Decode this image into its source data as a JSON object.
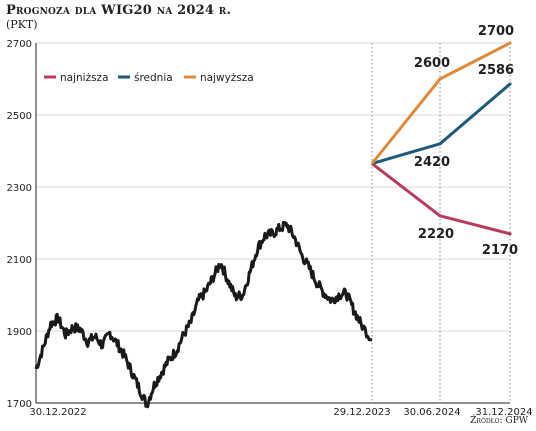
{
  "chart_data": {
    "type": "line",
    "title": "Prognoza dla WIG20 na 2024 r.",
    "subtitle": "(PKT)",
    "source": "Źródło: GPW",
    "ylim": [
      1700,
      2700
    ],
    "yticks": [
      1700,
      1900,
      2100,
      2300,
      2500,
      2700
    ],
    "x_tick_labels": [
      "30.12.2022",
      "29.12.2023",
      "30.06.2024",
      "31.12.2024"
    ],
    "grid": true,
    "legend_position": "top-left",
    "historical": {
      "color": "#1a1a1a",
      "x": [
        0,
        8,
        16,
        24,
        32,
        40,
        48,
        56,
        64,
        72,
        80,
        88,
        96,
        104,
        112,
        120,
        128,
        136,
        144,
        152,
        160,
        168,
        176,
        184,
        192,
        200,
        208,
        216,
        224,
        232,
        240,
        248,
        256,
        264,
        272,
        280,
        288,
        296,
        304,
        312,
        320,
        328,
        336,
        344,
        352,
        364
      ],
      "y": [
        1795,
        1855,
        1920,
        1935,
        1890,
        1910,
        1905,
        1870,
        1885,
        1860,
        1895,
        1865,
        1830,
        1785,
        1740,
        1695,
        1750,
        1785,
        1820,
        1845,
        1890,
        1925,
        1985,
        2010,
        2050,
        2090,
        2040,
        1995,
        2000,
        2065,
        2130,
        2165,
        2170,
        2185,
        2195,
        2160,
        2110,
        2075,
        2035,
        2005,
        1985,
        2000,
        2005,
        1960,
        1920,
        1875
      ],
      "note": "daily index path approximated"
    },
    "series": [
      {
        "name": "najniższa",
        "color": "#b83b5e",
        "x": [
          "29.12.2023",
          "30.06.2024",
          "31.12.2024"
        ],
        "values": [
          2365,
          2220,
          2170
        ]
      },
      {
        "name": "średnia",
        "color": "#1f5a7a",
        "x": [
          "29.12.2023",
          "30.06.2024",
          "31.12.2024"
        ],
        "values": [
          2365,
          2420,
          2586
        ]
      },
      {
        "name": "najwyższa",
        "color": "#e08a3c",
        "x": [
          "29.12.2023",
          "30.06.2024",
          "31.12.2024"
        ],
        "values": [
          2365,
          2600,
          2700
        ]
      }
    ],
    "value_labels": [
      {
        "text": "2700",
        "series": "najwyższa",
        "point": 2
      },
      {
        "text": "2600",
        "series": "najwyższa",
        "point": 1
      },
      {
        "text": "2586",
        "series": "średnia",
        "point": 2
      },
      {
        "text": "2420",
        "series": "średnia",
        "point": 1
      },
      {
        "text": "2220",
        "series": "najniższa",
        "point": 1
      },
      {
        "text": "2170",
        "series": "najniższa",
        "point": 2
      }
    ]
  }
}
